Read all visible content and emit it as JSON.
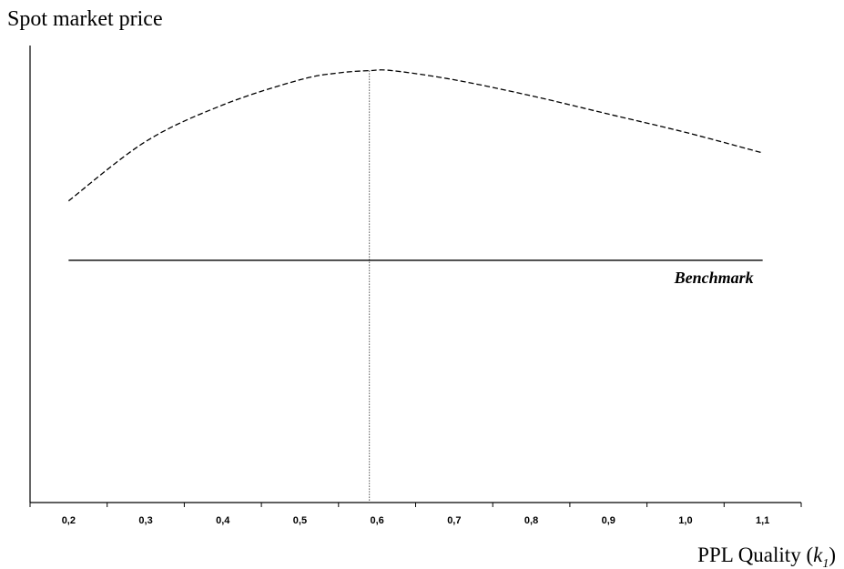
{
  "chart_data": {
    "type": "line",
    "title": "Spot market price",
    "xlabel": {
      "main": "PPL Quality (",
      "var": "k",
      "sub": "1",
      "close": ")"
    },
    "ylabel": "",
    "x_ticks": [
      "0,2",
      "0,3",
      "0,4",
      "0,5",
      "0,6",
      "0,7",
      "0,8",
      "0,9",
      "1,0",
      "1,1"
    ],
    "xlim": [
      0.15,
      1.15
    ],
    "y_axis_values_shown": false,
    "grid": false,
    "legend": "none",
    "series": [
      {
        "style": "dashed",
        "color": "#000000",
        "x": [
          0.2,
          0.3,
          0.4,
          0.5,
          0.55,
          0.59,
          0.62,
          0.7,
          0.8,
          0.9,
          1.0,
          1.1
        ],
        "y": [
          0.66,
          0.79,
          0.87,
          0.925,
          0.94,
          0.945,
          0.945,
          0.925,
          0.89,
          0.85,
          0.81,
          0.765
        ]
      },
      {
        "style": "solid",
        "color": "#000000",
        "x": [
          0.2,
          1.1
        ],
        "y": [
          0.53,
          0.53
        ]
      }
    ],
    "ylim": [
      0,
      1
    ],
    "annotations": [
      {
        "text": "Benchmark",
        "style": "italic-bold"
      }
    ],
    "reference_line": {
      "orientation": "vertical",
      "x": 0.59,
      "style": "dotted"
    }
  }
}
